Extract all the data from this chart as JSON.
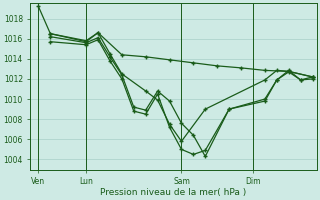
{
  "bg_color": "#ceeae4",
  "grid_color": "#a8cfc8",
  "line_color": "#1a5c1a",
  "xlabel": "Pression niveau de la mer( hPa )",
  "ylim": [
    1003.0,
    1019.5
  ],
  "yticks": [
    1004,
    1006,
    1008,
    1010,
    1012,
    1014,
    1016,
    1018
  ],
  "xtick_labels": [
    "Ven",
    "Lun",
    "Sam",
    "Dim"
  ],
  "xtick_positions": [
    0,
    24,
    72,
    108
  ],
  "xlim": [
    -4,
    140
  ],
  "vlines": [
    0,
    24,
    72,
    108
  ],
  "s1_x": [
    0,
    6,
    24,
    30,
    42,
    54,
    66,
    78,
    90,
    102,
    114,
    126,
    138
  ],
  "s1_y": [
    1019.2,
    1016.5,
    1015.8,
    1016.6,
    1014.4,
    1014.2,
    1013.9,
    1013.6,
    1013.3,
    1013.1,
    1012.85,
    1012.75,
    1012.2
  ],
  "s2_x": [
    6,
    24,
    30,
    36,
    42,
    54,
    60,
    66,
    72,
    84,
    114,
    120,
    126,
    138
  ],
  "s2_y": [
    1016.5,
    1015.7,
    1016.6,
    1014.5,
    1012.5,
    1010.8,
    1009.9,
    1007.5,
    1005.8,
    1009.0,
    1011.9,
    1012.85,
    1012.75,
    1012.2
  ],
  "s3_x": [
    6,
    24,
    30,
    36,
    42,
    48,
    54,
    60,
    66,
    72,
    78,
    84,
    96,
    114,
    120,
    126,
    132,
    138
  ],
  "s3_y": [
    1016.2,
    1015.6,
    1016.1,
    1014.2,
    1012.4,
    1009.2,
    1008.9,
    1010.8,
    1009.8,
    1007.6,
    1006.4,
    1004.3,
    1009.0,
    1010.0,
    1011.9,
    1012.85,
    1011.9,
    1012.2
  ],
  "s4_x": [
    6,
    24,
    30,
    36,
    42,
    48,
    54,
    60,
    66,
    72,
    78,
    84,
    96,
    114,
    120,
    126,
    132,
    138
  ],
  "s4_y": [
    1015.7,
    1015.4,
    1015.9,
    1013.8,
    1012.0,
    1008.8,
    1008.5,
    1010.5,
    1007.2,
    1005.0,
    1004.5,
    1004.9,
    1009.0,
    1009.8,
    1011.9,
    1012.7,
    1011.9,
    1012.0
  ]
}
